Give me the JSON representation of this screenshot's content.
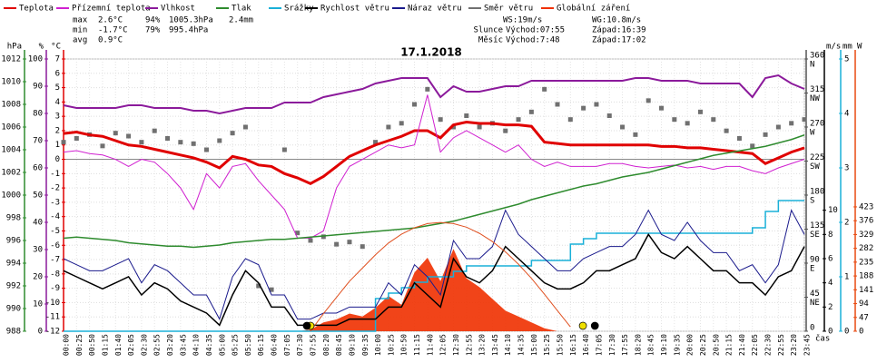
{
  "chart_data": {
    "type": "line",
    "title": "17.1.2018",
    "x_label": "čas",
    "grid": true,
    "categories": [
      "00:00",
      "00:25",
      "00:50",
      "01:15",
      "01:40",
      "02:05",
      "02:30",
      "02:55",
      "03:20",
      "03:45",
      "04:10",
      "04:35",
      "05:00",
      "05:25",
      "05:50",
      "06:15",
      "06:40",
      "07:05",
      "07:30",
      "07:55",
      "08:20",
      "08:45",
      "09:10",
      "09:35",
      "10:00",
      "10:25",
      "10:50",
      "11:15",
      "11:40",
      "12:05",
      "12:30",
      "12:55",
      "13:20",
      "13:45",
      "14:10",
      "14:35",
      "15:00",
      "15:25",
      "15:50",
      "16:15",
      "16:40",
      "17:05",
      "17:30",
      "17:55",
      "18:20",
      "18:45",
      "19:10",
      "19:35",
      "20:00",
      "20:25",
      "20:50",
      "21:15",
      "21:40",
      "22:05",
      "22:30",
      "22:55",
      "23:20",
      "23:45"
    ],
    "axes": [
      {
        "label": "hPa",
        "color": "#2e8b2e",
        "lim": [
          988,
          1012
        ],
        "ticks": [
          988,
          990,
          992,
          994,
          996,
          998,
          1000,
          1002,
          1004,
          1006,
          1008,
          1010,
          1012
        ]
      },
      {
        "label": "%",
        "color": "#8b1a9b",
        "lim": [
          0,
          100
        ],
        "ticks": [
          0,
          10,
          20,
          30,
          40,
          50,
          60,
          70,
          80,
          90,
          100
        ]
      },
      {
        "label": "°C",
        "color": "#e00000",
        "lim": [
          -12,
          7
        ],
        "ticks": [
          -12,
          -11,
          -10,
          -9,
          -8,
          -7,
          -6,
          -5,
          -4,
          -3,
          -2,
          -1,
          0,
          1,
          2,
          3,
          4,
          5,
          6,
          7
        ]
      },
      {
        "label": "m/s",
        "color": "#000000",
        "lim": [
          0,
          22.5
        ],
        "ticks": [
          0,
          2,
          4,
          6,
          8,
          10
        ]
      },
      {
        "label": "mm",
        "color": "#1ab0d8",
        "lim": [
          0,
          5
        ],
        "ticks": [
          0,
          1,
          2,
          3,
          4,
          5
        ]
      },
      {
        "label": "W",
        "color": "#e84a10",
        "lim": [
          0,
          926
        ],
        "ticks": [
          0,
          47,
          94,
          141,
          188,
          235,
          282,
          329,
          376,
          423
        ]
      },
      {
        "color": "#555555",
        "lim": [
          0,
          360
        ],
        "ticks": [
          0,
          45,
          90,
          135,
          180,
          225,
          270,
          315,
          360
        ],
        "compass": [
          {
            "value": 45,
            "label": "NE"
          },
          {
            "value": 90,
            "label": "E"
          },
          {
            "value": 135,
            "label": "SE"
          },
          {
            "value": 180,
            "label": "S"
          },
          {
            "value": 225,
            "label": "SW"
          },
          {
            "value": 270,
            "label": "W"
          },
          {
            "value": 315,
            "label": "NW"
          },
          {
            "value": 360,
            "label": "N"
          }
        ]
      }
    ],
    "series": [
      {
        "name": "Teplota",
        "color": "#e00000",
        "axis": 2,
        "style": "line",
        "width": 3,
        "values": [
          1.8,
          1.9,
          1.7,
          1.6,
          1.3,
          1.0,
          0.9,
          0.7,
          0.5,
          0.3,
          0.1,
          -0.2,
          -0.6,
          0.2,
          0.0,
          -0.4,
          -0.5,
          -1.0,
          -1.3,
          -1.7,
          -1.2,
          -0.5,
          0.2,
          0.6,
          1.0,
          1.3,
          1.6,
          2.0,
          2.0,
          1.5,
          2.4,
          2.6,
          2.5,
          2.5,
          2.4,
          2.4,
          2.3,
          1.2,
          1.1,
          1.0,
          1.0,
          1.0,
          1.0,
          1.0,
          1.0,
          1.0,
          0.9,
          0.9,
          0.8,
          0.8,
          0.7,
          0.6,
          0.5,
          0.4,
          -0.3,
          0.1,
          0.5,
          0.8
        ]
      },
      {
        "name": "Přízemní teplota",
        "color": "#d020d0",
        "axis": 2,
        "style": "line",
        "width": 1,
        "values": [
          0.5,
          0.6,
          0.4,
          0.3,
          0.0,
          -0.5,
          0.0,
          -0.2,
          -1.0,
          -2.0,
          -3.5,
          -1.0,
          -2.0,
          -0.5,
          -0.3,
          -1.5,
          -2.5,
          -3.5,
          -5.5,
          -5.5,
          -5.0,
          -2.0,
          -0.5,
          0.0,
          0.5,
          1.0,
          0.8,
          1.0,
          4.5,
          0.5,
          1.5,
          2.0,
          1.5,
          1.0,
          0.5,
          1.0,
          0.0,
          -0.5,
          -0.2,
          -0.5,
          -0.5,
          -0.5,
          -0.3,
          -0.3,
          -0.5,
          -0.6,
          -0.5,
          -0.4,
          -0.6,
          -0.5,
          -0.7,
          -0.5,
          -0.5,
          -0.8,
          -1.0,
          -0.6,
          -0.3,
          0.0
        ]
      },
      {
        "name": "Vlhkost",
        "color": "#8b1a9b",
        "axis": 1,
        "style": "line",
        "width": 2,
        "values": [
          83,
          82,
          82,
          82,
          82,
          83,
          83,
          82,
          82,
          82,
          81,
          81,
          80,
          81,
          82,
          82,
          82,
          84,
          84,
          84,
          86,
          87,
          88,
          89,
          91,
          92,
          93,
          93,
          93,
          86,
          90,
          88,
          88,
          89,
          90,
          90,
          92,
          92,
          92,
          92,
          92,
          92,
          92,
          92,
          93,
          93,
          92,
          92,
          92,
          91,
          91,
          91,
          91,
          86,
          93,
          94,
          91,
          89
        ]
      },
      {
        "name": "Tlak",
        "color": "#2e8b2e",
        "axis": 0,
        "style": "line",
        "width": 1.5,
        "values": [
          996.2,
          996.3,
          996.2,
          996.1,
          996.0,
          995.8,
          995.7,
          995.6,
          995.5,
          995.5,
          995.4,
          995.5,
          995.6,
          995.8,
          995.9,
          996.0,
          996.1,
          996.1,
          996.2,
          996.3,
          996.4,
          996.5,
          996.6,
          996.7,
          996.8,
          996.9,
          997.0,
          997.1,
          997.3,
          997.5,
          997.7,
          998.0,
          998.3,
          998.6,
          998.9,
          999.2,
          999.6,
          999.9,
          1000.2,
          1000.5,
          1000.8,
          1001.0,
          1001.3,
          1001.6,
          1001.8,
          1002.0,
          1002.3,
          1002.6,
          1002.9,
          1003.2,
          1003.5,
          1003.7,
          1003.9,
          1004.1,
          1004.3,
          1004.6,
          1004.9,
          1005.3
        ]
      },
      {
        "name": "Srážky",
        "color": "#1ab0d8",
        "axis": 4,
        "style": "step",
        "width": 1.5,
        "values": [
          0,
          0,
          0,
          0,
          0,
          0,
          0,
          0,
          0,
          0,
          0,
          0,
          0,
          0,
          0,
          0,
          0,
          0,
          0,
          0,
          0,
          0,
          0,
          0,
          0.6,
          0.7,
          0.8,
          0.9,
          1.0,
          1.0,
          1.1,
          1.2,
          1.2,
          1.2,
          1.2,
          1.2,
          1.3,
          1.3,
          1.3,
          1.6,
          1.7,
          1.8,
          1.8,
          1.8,
          1.8,
          1.8,
          1.8,
          1.8,
          1.8,
          1.8,
          1.8,
          1.8,
          1.8,
          1.9,
          2.2,
          2.4,
          2.4,
          2.4
        ]
      },
      {
        "name": "Rychlost větru",
        "color": "#000000",
        "axis": 3,
        "style": "line",
        "width": 1.5,
        "values": [
          5,
          4.5,
          4,
          3.5,
          4,
          4.5,
          3,
          4,
          3.5,
          2.5,
          2,
          1.5,
          0.5,
          3,
          5,
          4,
          2,
          2,
          0.5,
          0.5,
          0.5,
          0.5,
          1,
          1,
          1,
          2,
          2,
          4,
          3,
          2,
          6,
          4.5,
          4,
          5,
          7,
          6,
          5,
          4,
          3.5,
          3.5,
          4,
          5,
          5,
          5.5,
          6,
          8,
          6.5,
          6,
          7,
          6,
          5,
          5,
          4,
          4,
          3,
          4.5,
          5,
          7
        ]
      },
      {
        "name": "Náraz větru",
        "color": "#1a1a8c",
        "axis": 3,
        "style": "line",
        "width": 1,
        "values": [
          6,
          5.5,
          5,
          5,
          5.5,
          6,
          4,
          5.5,
          5,
          4,
          3,
          3,
          1,
          4.5,
          6,
          5.5,
          3,
          3,
          1,
          1,
          1.5,
          1.5,
          2,
          2,
          2,
          4,
          3,
          5.5,
          4.5,
          3,
          7.5,
          6,
          6,
          7,
          10,
          8,
          7,
          6,
          5,
          5,
          6,
          6.5,
          7,
          7,
          8,
          10,
          8,
          7.5,
          9,
          7.5,
          6.5,
          6.5,
          5,
          5.5,
          4,
          5.5,
          10,
          8
        ]
      },
      {
        "name": "Směr větru",
        "color": "#707070",
        "axis": 6,
        "style": "points",
        "width": 1,
        "values": [
          250,
          255,
          260,
          245,
          262,
          258,
          250,
          265,
          255,
          250,
          248,
          240,
          252,
          262,
          270,
          60,
          55,
          240,
          130,
          120,
          125,
          115,
          118,
          112,
          250,
          270,
          275,
          300,
          320,
          280,
          270,
          285,
          270,
          275,
          265,
          280,
          290,
          320,
          300,
          280,
          295,
          300,
          285,
          270,
          260,
          305,
          295,
          280,
          275,
          290,
          280,
          265,
          255,
          245,
          260,
          270,
          275,
          280
        ]
      },
      {
        "name": "Globální záření",
        "color": "#f03000",
        "axis": 5,
        "style": "area",
        "width": 1,
        "values": [
          0,
          0,
          0,
          0,
          0,
          0,
          0,
          0,
          0,
          0,
          0,
          0,
          0,
          0,
          0,
          0,
          0,
          0,
          0,
          5,
          30,
          40,
          60,
          50,
          80,
          120,
          90,
          200,
          250,
          170,
          280,
          180,
          150,
          110,
          70,
          50,
          30,
          10,
          0,
          0,
          0,
          0,
          0,
          0,
          0,
          0,
          0,
          0,
          0,
          0,
          0,
          0,
          0,
          0,
          0,
          0,
          0,
          0
        ]
      }
    ],
    "reference_curve": {
      "color": "#e05020",
      "axis": 5,
      "values": [
        null,
        null,
        null,
        null,
        null,
        null,
        null,
        null,
        null,
        null,
        null,
        null,
        null,
        null,
        null,
        null,
        null,
        null,
        null,
        0,
        60,
        115,
        170,
        215,
        260,
        300,
        330,
        352,
        366,
        370,
        366,
        354,
        333,
        305,
        270,
        228,
        180,
        126,
        70,
        15,
        null,
        null,
        null,
        null,
        null,
        null,
        null,
        null,
        null,
        null,
        null,
        null,
        null,
        null,
        null,
        null,
        null,
        null
      ]
    },
    "stats": [
      {
        "label": "max",
        "color": "#e00000",
        "values": [
          "2.6°C",
          "94%",
          "1005.3hPa",
          "2.4mm"
        ]
      },
      {
        "label": "min",
        "color": "#1a1a8c",
        "values": [
          "-1.7°C",
          "79%",
          "995.4hPa"
        ]
      },
      {
        "label": "avg",
        "color": "#1a1a8c",
        "values": [
          "0.9°C"
        ]
      }
    ],
    "wind_info": [
      "WS:19m/s",
      "WG:10.8m/s"
    ],
    "sun": {
      "label": "Slunce",
      "rise": "Východ:07:55",
      "set": "Západ:16:39",
      "color": "#f0e000"
    },
    "moon": {
      "label": "Měsíc",
      "rise": "Východ:7:48",
      "set": "Západ:17:02",
      "color": "#000000"
    }
  }
}
